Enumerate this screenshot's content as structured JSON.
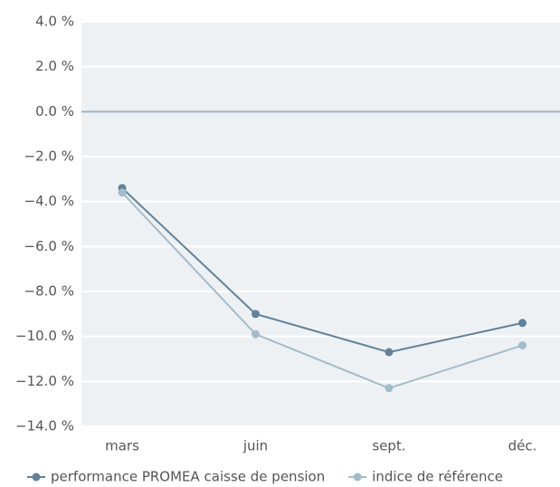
{
  "chart_data": {
    "type": "line",
    "categories": [
      "mars",
      "juin",
      "sept.",
      "déc."
    ],
    "series": [
      {
        "name": "performance PROMEA caisse de pension",
        "color": "#62829a",
        "values": [
          -3.4,
          -9.0,
          -10.7,
          -9.4
        ]
      },
      {
        "name": "indice de référence",
        "color": "#a3bccb",
        "values": [
          -3.6,
          -9.9,
          -12.3,
          -10.4
        ]
      }
    ],
    "ylim": [
      -14,
      4
    ],
    "yticks": [
      {
        "value": -14,
        "label": "−14.0 %"
      },
      {
        "value": -12,
        "label": "−12.0 %"
      },
      {
        "value": -10,
        "label": "−10.0 %"
      },
      {
        "value": -8,
        "label": "−8.0 %"
      },
      {
        "value": -6,
        "label": "−6.0 %"
      },
      {
        "value": -4,
        "label": "−4.0 %"
      },
      {
        "value": -2,
        "label": "−2.0 %"
      },
      {
        "value": 0,
        "label": "0.0 %"
      },
      {
        "value": 2,
        "label": "2.0 %"
      },
      {
        "value": 4,
        "label": "4.0 %"
      }
    ],
    "grid": true
  }
}
